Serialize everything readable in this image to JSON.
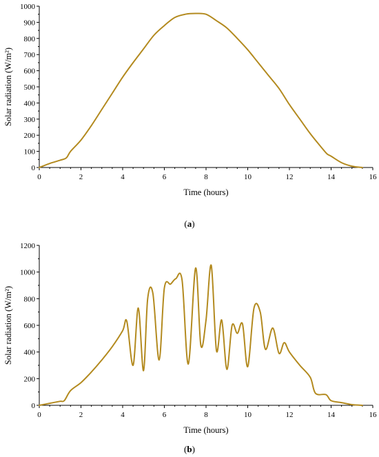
{
  "colors": {
    "series": "#b38a1f",
    "axis": "#000000",
    "background": "#ffffff"
  },
  "chart_data": [
    {
      "type": "line",
      "panel_label": "a",
      "xlabel": "Time (hours)",
      "ylabel": "Solar radiation (W/m²)",
      "xlim": [
        0,
        16
      ],
      "ylim": [
        0,
        1000
      ],
      "xticks": [
        0,
        2,
        4,
        6,
        8,
        10,
        12,
        14,
        16
      ],
      "yticks": [
        0,
        100,
        200,
        300,
        400,
        500,
        600,
        700,
        800,
        900,
        1000
      ],
      "grid": false,
      "series": [
        {
          "x": [
            0,
            0.5,
            1.0,
            1.3,
            1.5,
            2.0,
            2.5,
            3.0,
            3.5,
            4.0,
            4.5,
            5.0,
            5.5,
            6.0,
            6.5,
            7.0,
            7.5,
            8.0,
            8.5,
            9.0,
            9.5,
            10.0,
            10.5,
            11.0,
            11.5,
            12.0,
            12.5,
            13.0,
            13.5,
            13.8,
            14.0,
            14.5,
            15.0,
            15.5
          ],
          "y": [
            0,
            25,
            45,
            60,
            100,
            170,
            260,
            360,
            460,
            560,
            650,
            735,
            820,
            880,
            930,
            950,
            955,
            950,
            910,
            865,
            800,
            730,
            650,
            570,
            490,
            390,
            300,
            210,
            130,
            85,
            70,
            30,
            8,
            0
          ]
        }
      ]
    },
    {
      "type": "line",
      "panel_label": "b",
      "xlabel": "Time (hours)",
      "ylabel": "Solar radiation (W/m²)",
      "xlim": [
        0,
        16
      ],
      "ylim": [
        0,
        1200
      ],
      "xticks": [
        0,
        2,
        4,
        6,
        8,
        10,
        12,
        14,
        16
      ],
      "yticks": [
        0,
        200,
        400,
        600,
        800,
        1000,
        1200
      ],
      "grid": false,
      "series": [
        {
          "x": [
            0,
            0.5,
            1.0,
            1.2,
            1.5,
            2.0,
            2.5,
            3.0,
            3.5,
            4.0,
            4.2,
            4.5,
            4.75,
            5.0,
            5.2,
            5.45,
            5.75,
            6.0,
            6.3,
            6.55,
            6.85,
            7.15,
            7.5,
            7.75,
            8.0,
            8.25,
            8.5,
            8.75,
            9.0,
            9.25,
            9.5,
            9.75,
            10.0,
            10.3,
            10.6,
            10.85,
            11.2,
            11.5,
            11.75,
            12.0,
            12.5,
            13.0,
            13.25,
            13.75,
            14.0,
            14.5,
            15.0,
            15.5
          ],
          "y": [
            0,
            15,
            30,
            35,
            110,
            170,
            250,
            340,
            440,
            560,
            630,
            300,
            730,
            260,
            800,
            840,
            340,
            880,
            910,
            950,
            940,
            310,
            1030,
            450,
            640,
            1050,
            410,
            640,
            270,
            600,
            540,
            610,
            290,
            730,
            700,
            420,
            580,
            390,
            470,
            400,
            300,
            210,
            90,
            80,
            35,
            20,
            5,
            0
          ]
        }
      ]
    }
  ]
}
